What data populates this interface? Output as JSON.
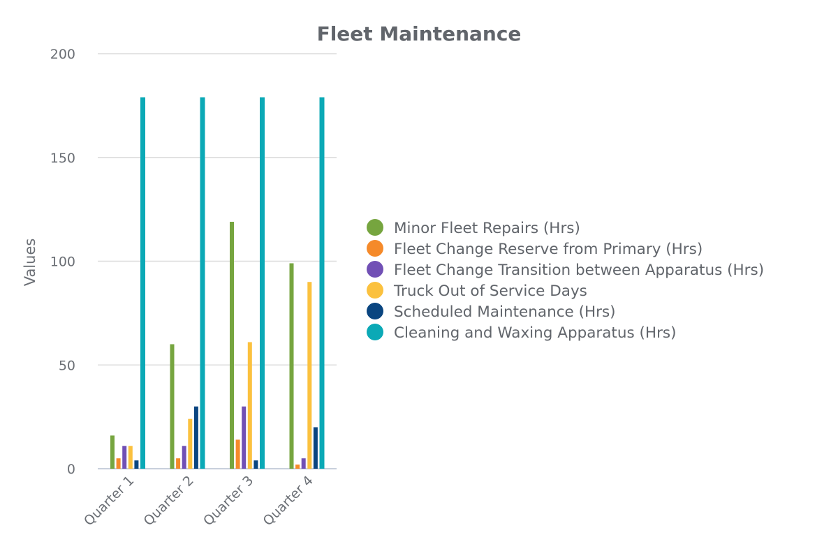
{
  "chart_data": {
    "type": "bar",
    "title": "Fleet Maintenance",
    "xlabel": "",
    "ylabel": "Values",
    "ylim": [
      0,
      200
    ],
    "yticks": [
      0,
      50,
      100,
      150,
      200
    ],
    "grid": true,
    "legend_position": "right",
    "categories": [
      "Quarter 1",
      "Quarter 2",
      "Quarter 3",
      "Quarter 4"
    ],
    "series": [
      {
        "name": "Minor Fleet Repairs (Hrs)",
        "color": "#76a53f",
        "values": [
          16,
          60,
          119,
          99
        ]
      },
      {
        "name": "Fleet Change Reserve from Primary (Hrs)",
        "color": "#f58a2a",
        "values": [
          5,
          5,
          14,
          2
        ]
      },
      {
        "name": "Fleet Change Transition between Apparatus (Hrs)",
        "color": "#7150b5",
        "values": [
          11,
          11,
          30,
          5
        ]
      },
      {
        "name": "Truck Out of Service Days",
        "color": "#fbc13e",
        "values": [
          11,
          24,
          61,
          90
        ]
      },
      {
        "name": "Scheduled Maintenance (Hrs)",
        "color": "#0a4580",
        "values": [
          4,
          30,
          4,
          20
        ]
      },
      {
        "name": "Cleaning and Waxing Apparatus (Hrs)",
        "color": "#0ba9b6",
        "values": [
          179,
          179,
          179,
          179
        ]
      }
    ]
  }
}
